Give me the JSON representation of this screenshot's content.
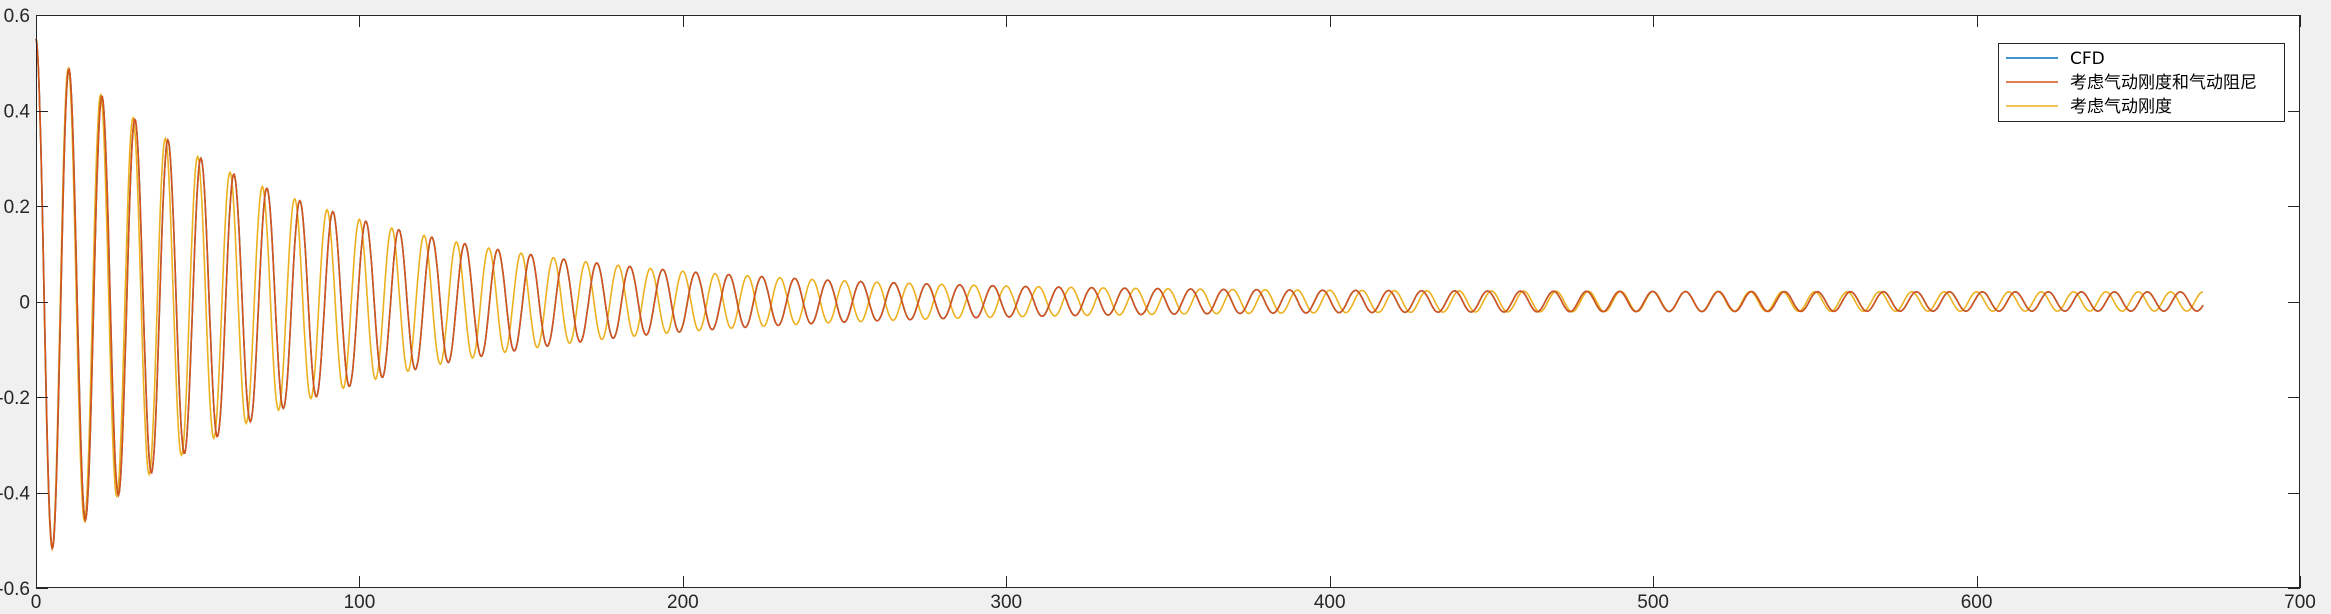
{
  "chart_data": {
    "type": "line",
    "title": "",
    "xlabel": "",
    "ylabel": "",
    "xlim": [
      0,
      700
    ],
    "ylim": [
      -0.6,
      0.6
    ],
    "x_ticks": [
      "0",
      "100",
      "200",
      "300",
      "400",
      "500",
      "600",
      "700"
    ],
    "y_ticks": [
      "0.6",
      "0.4",
      "0.2",
      "0",
      "-0.2",
      "-0.4",
      "-0.6"
    ],
    "x_tick_values": [
      0,
      100,
      200,
      300,
      400,
      500,
      600,
      700
    ],
    "y_tick_values": [
      0.6,
      0.4,
      0.2,
      0,
      -0.2,
      -0.4,
      -0.6
    ],
    "grid": false,
    "box": true,
    "legend_position": "top-right",
    "signal": {
      "x_range": [
        0,
        670
      ],
      "initial_value": 0.55,
      "first_trough": -0.53,
      "first_trough_x": 5,
      "mean": 0,
      "approx_period": 10
    },
    "series": [
      {
        "name": "CFD",
        "color": "#0072bd",
        "final_amplitude": 0.02,
        "decay_rate": 0.0125,
        "period": 10.2,
        "phase": 0
      },
      {
        "name": "考虑气动刚度和气动阻尼",
        "color": "#d95319",
        "final_amplitude": 0.02,
        "decay_rate": 0.0125,
        "period": 10.2,
        "phase": 0
      },
      {
        "name": "考虑气动刚度",
        "color": "#edb120",
        "final_amplitude": 0.02,
        "decay_rate": 0.0125,
        "period": 10.0,
        "phase": 0
      }
    ]
  }
}
